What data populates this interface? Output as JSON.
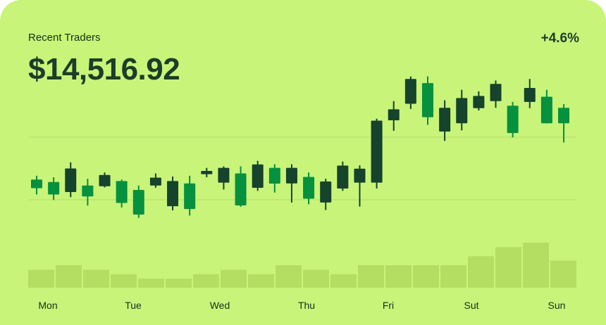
{
  "header": {
    "title": "Recent Traders",
    "amount": "$14,516.92",
    "change": "+4.6%"
  },
  "colors": {
    "background": "#c8f47a",
    "candle_up": "#05913e",
    "candle_down": "#15432b",
    "volume_bar": "#b4de62",
    "grid": "#b5de65"
  },
  "chart_data": {
    "type": "candlestick",
    "x_tick_labels": [
      "Mon",
      "Tue",
      "Wed",
      "Thu",
      "Fri",
      "Sut",
      "Sun"
    ],
    "grid": true,
    "candles": [
      {
        "open": 5.0,
        "close": 5.45,
        "high": 5.65,
        "low": 4.67,
        "direction": "up"
      },
      {
        "open": 4.67,
        "close": 5.32,
        "high": 5.57,
        "low": 4.38,
        "direction": "up"
      },
      {
        "open": 4.8,
        "close": 6.03,
        "high": 6.35,
        "low": 4.53,
        "direction": "down"
      },
      {
        "open": 4.57,
        "close": 5.14,
        "high": 5.49,
        "low": 4.09,
        "direction": "up"
      },
      {
        "open": 5.1,
        "close": 5.69,
        "high": 5.82,
        "low": 5.04,
        "direction": "down"
      },
      {
        "open": 4.23,
        "close": 5.37,
        "high": 5.45,
        "low": 3.99,
        "direction": "up"
      },
      {
        "open": 3.62,
        "close": 4.91,
        "high": 5.14,
        "low": 3.45,
        "direction": "up"
      },
      {
        "open": 5.14,
        "close": 5.55,
        "high": 5.77,
        "low": 5.02,
        "direction": "down"
      },
      {
        "open": 4.06,
        "close": 5.37,
        "high": 5.61,
        "low": 3.84,
        "direction": "down"
      },
      {
        "open": 3.91,
        "close": 5.25,
        "high": 5.65,
        "low": 3.57,
        "direction": "up"
      },
      {
        "open": 5.73,
        "close": 5.9,
        "high": 6.06,
        "low": 5.57,
        "direction": "down"
      },
      {
        "open": 5.29,
        "close": 6.06,
        "high": 6.14,
        "low": 4.93,
        "direction": "down"
      },
      {
        "open": 4.1,
        "close": 5.77,
        "high": 6.14,
        "low": 4.03,
        "direction": "up"
      },
      {
        "open": 5.02,
        "close": 6.24,
        "high": 6.43,
        "low": 4.86,
        "direction": "down"
      },
      {
        "open": 5.24,
        "close": 6.06,
        "high": 6.25,
        "low": 4.77,
        "direction": "up"
      },
      {
        "open": 5.25,
        "close": 6.06,
        "high": 6.25,
        "low": 4.25,
        "direction": "down"
      },
      {
        "open": 4.45,
        "close": 5.59,
        "high": 5.82,
        "low": 4.16,
        "direction": "up"
      },
      {
        "open": 4.25,
        "close": 5.35,
        "high": 5.49,
        "low": 3.86,
        "direction": "down"
      },
      {
        "open": 4.98,
        "close": 6.18,
        "high": 6.39,
        "low": 4.86,
        "direction": "down"
      },
      {
        "open": 5.29,
        "close": 6.02,
        "high": 6.19,
        "low": 4.04,
        "direction": "down"
      },
      {
        "open": 5.29,
        "close": 8.53,
        "high": 8.63,
        "low": 4.98,
        "direction": "down"
      },
      {
        "open": 8.55,
        "close": 9.12,
        "high": 9.55,
        "low": 8.0,
        "direction": "down"
      },
      {
        "open": 9.41,
        "close": 10.71,
        "high": 10.84,
        "low": 9.14,
        "direction": "down"
      },
      {
        "open": 10.49,
        "close": 8.71,
        "high": 10.84,
        "low": 8.31,
        "direction": "up"
      },
      {
        "open": 7.96,
        "close": 9.2,
        "high": 9.59,
        "low": 7.47,
        "direction": "down"
      },
      {
        "open": 8.39,
        "close": 9.71,
        "high": 10.14,
        "low": 8.02,
        "direction": "down"
      },
      {
        "open": 9.18,
        "close": 9.82,
        "high": 10.06,
        "low": 9.06,
        "direction": "down"
      },
      {
        "open": 9.55,
        "close": 10.45,
        "high": 10.63,
        "low": 9.2,
        "direction": "down"
      },
      {
        "open": 9.31,
        "close": 7.88,
        "high": 9.51,
        "low": 7.65,
        "direction": "up"
      },
      {
        "open": 9.51,
        "close": 10.24,
        "high": 10.71,
        "low": 9.18,
        "direction": "down"
      },
      {
        "open": 9.78,
        "close": 8.39,
        "high": 10.14,
        "low": 8.39,
        "direction": "up"
      },
      {
        "open": 9.2,
        "close": 8.39,
        "high": 9.39,
        "low": 7.39,
        "direction": "up"
      }
    ],
    "volume": [
      4,
      5,
      4,
      3,
      2,
      2,
      3,
      4,
      3,
      5,
      4,
      3,
      5,
      5,
      5,
      5,
      7,
      9,
      10,
      6
    ]
  }
}
